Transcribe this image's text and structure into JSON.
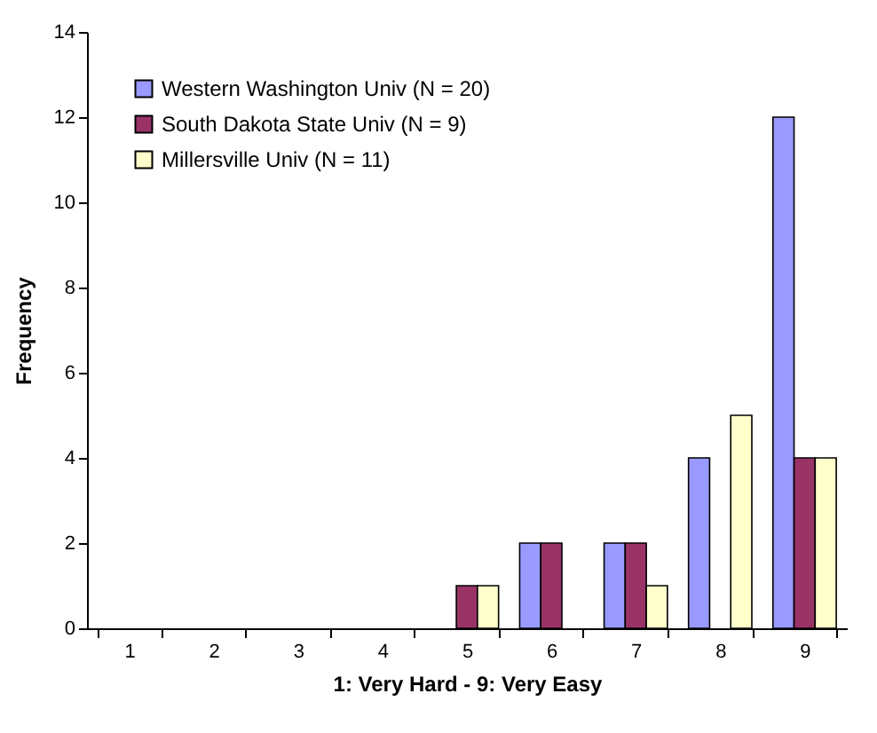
{
  "chart_data": {
    "type": "bar",
    "xlabel": "1: Very Hard - 9: Very Easy",
    "ylabel": "Frequency",
    "categories": [
      "1",
      "2",
      "3",
      "4",
      "5",
      "6",
      "7",
      "8",
      "9"
    ],
    "series": [
      {
        "name": "Western Washington Univ (N = 20)",
        "color": "#9999ff",
        "values": [
          0,
          0,
          0,
          0,
          0,
          2,
          2,
          4,
          12
        ]
      },
      {
        "name": "South Dakota State Univ (N = 9)",
        "color": "#993366",
        "values": [
          0,
          0,
          0,
          0,
          1,
          2,
          2,
          0,
          4
        ]
      },
      {
        "name": "Millersville Univ (N = 11)",
        "color": "#ffffcc",
        "values": [
          0,
          0,
          0,
          0,
          1,
          0,
          1,
          5,
          4
        ]
      }
    ],
    "ylim": [
      0,
      14
    ],
    "yticks": [
      0,
      2,
      4,
      6,
      8,
      10,
      12,
      14
    ],
    "grid": false,
    "legend": "top left"
  }
}
